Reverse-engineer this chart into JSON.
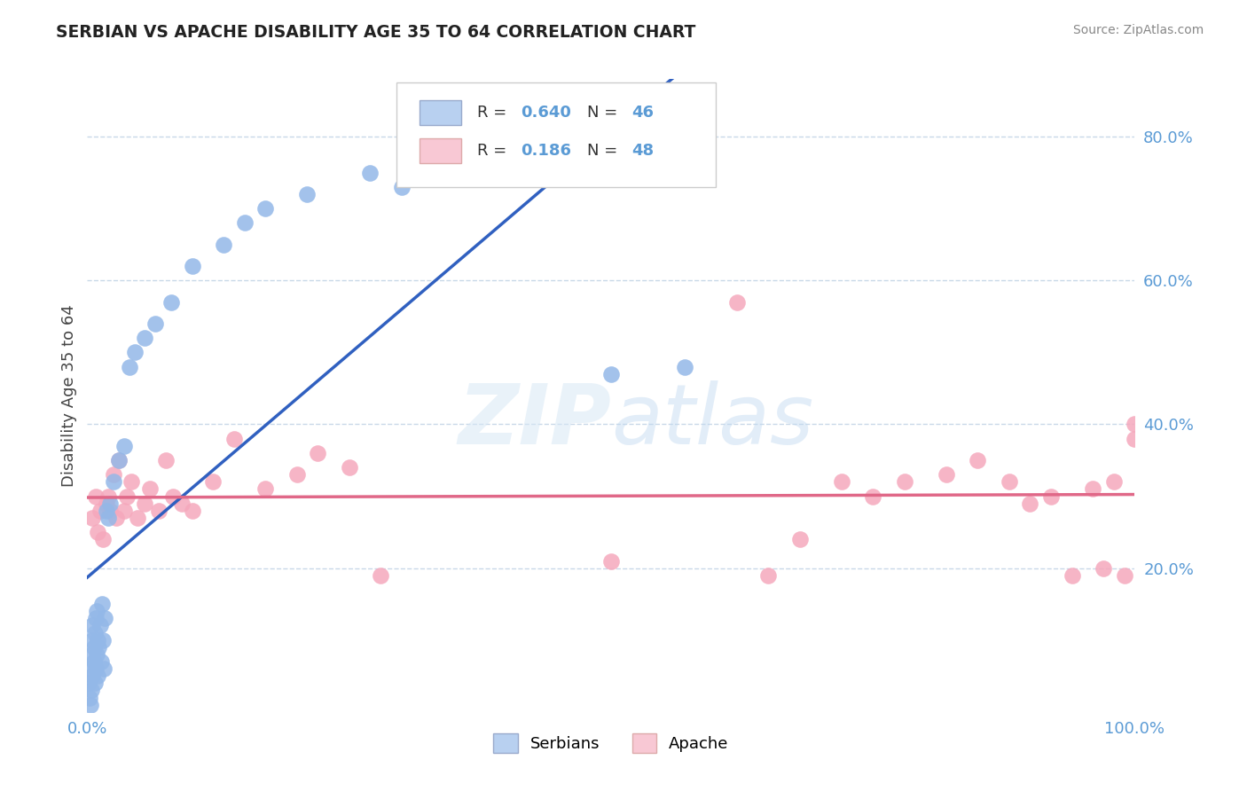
{
  "title": "SERBIAN VS APACHE DISABILITY AGE 35 TO 64 CORRELATION CHART",
  "source": "Source: ZipAtlas.com",
  "ylabel": "Disability Age 35 to 64",
  "xlim": [
    0.0,
    1.0
  ],
  "ylim": [
    0.0,
    0.88
  ],
  "ytick_positions": [
    0.2,
    0.4,
    0.6,
    0.8
  ],
  "ytick_labels": [
    "20.0%",
    "40.0%",
    "60.0%",
    "80.0%"
  ],
  "xtick_positions": [
    0.0,
    0.25,
    0.5,
    0.75,
    1.0
  ],
  "xtick_labels": [
    "0.0%",
    "",
    "",
    "",
    "100.0%"
  ],
  "serbian_R": 0.64,
  "serbian_N": 46,
  "apache_R": 0.186,
  "apache_N": 48,
  "serbian_color": "#93b8e8",
  "apache_color": "#f5a8bc",
  "serbian_line_color": "#3060c0",
  "apache_line_color": "#e06888",
  "legend_serbian_face": "#b8d0f0",
  "legend_apache_face": "#f8c8d4",
  "watermark_color": "#d8e8f5",
  "background_color": "#ffffff",
  "grid_color": "#c8d8e8",
  "title_color": "#222222",
  "source_color": "#888888",
  "axis_label_color": "#444444",
  "tick_color": "#5b9bd5",
  "serbian_x": [
    0.001,
    0.002,
    0.003,
    0.003,
    0.004,
    0.004,
    0.005,
    0.005,
    0.005,
    0.006,
    0.006,
    0.007,
    0.007,
    0.008,
    0.008,
    0.009,
    0.009,
    0.01,
    0.01,
    0.011,
    0.012,
    0.013,
    0.014,
    0.015,
    0.016,
    0.017,
    0.018,
    0.02,
    0.022,
    0.025,
    0.03,
    0.035,
    0.04,
    0.045,
    0.055,
    0.065,
    0.08,
    0.1,
    0.13,
    0.15,
    0.17,
    0.21,
    0.27,
    0.3,
    0.5,
    0.57
  ],
  "serbian_y": [
    0.04,
    0.02,
    0.01,
    0.06,
    0.03,
    0.08,
    0.05,
    0.1,
    0.12,
    0.07,
    0.09,
    0.04,
    0.11,
    0.06,
    0.13,
    0.08,
    0.14,
    0.05,
    0.1,
    0.09,
    0.12,
    0.07,
    0.15,
    0.1,
    0.06,
    0.13,
    0.28,
    0.27,
    0.29,
    0.32,
    0.35,
    0.37,
    0.48,
    0.5,
    0.52,
    0.54,
    0.57,
    0.62,
    0.65,
    0.68,
    0.7,
    0.72,
    0.75,
    0.73,
    0.47,
    0.48
  ],
  "apache_x": [
    0.005,
    0.008,
    0.01,
    0.012,
    0.015,
    0.018,
    0.02,
    0.022,
    0.025,
    0.028,
    0.03,
    0.035,
    0.038,
    0.042,
    0.048,
    0.055,
    0.06,
    0.068,
    0.075,
    0.082,
    0.09,
    0.1,
    0.12,
    0.14,
    0.17,
    0.2,
    0.22,
    0.25,
    0.28,
    0.5,
    0.62,
    0.65,
    0.68,
    0.72,
    0.75,
    0.78,
    0.82,
    0.85,
    0.88,
    0.9,
    0.92,
    0.94,
    0.96,
    0.97,
    0.98,
    0.99,
    1.0,
    1.0
  ],
  "apache_y": [
    0.27,
    0.3,
    0.25,
    0.28,
    0.24,
    0.29,
    0.3,
    0.28,
    0.33,
    0.27,
    0.35,
    0.28,
    0.3,
    0.32,
    0.27,
    0.29,
    0.31,
    0.28,
    0.35,
    0.3,
    0.29,
    0.28,
    0.32,
    0.38,
    0.31,
    0.33,
    0.36,
    0.34,
    0.19,
    0.21,
    0.57,
    0.19,
    0.24,
    0.32,
    0.3,
    0.32,
    0.33,
    0.35,
    0.32,
    0.29,
    0.3,
    0.19,
    0.31,
    0.2,
    0.32,
    0.19,
    0.38,
    0.4
  ]
}
